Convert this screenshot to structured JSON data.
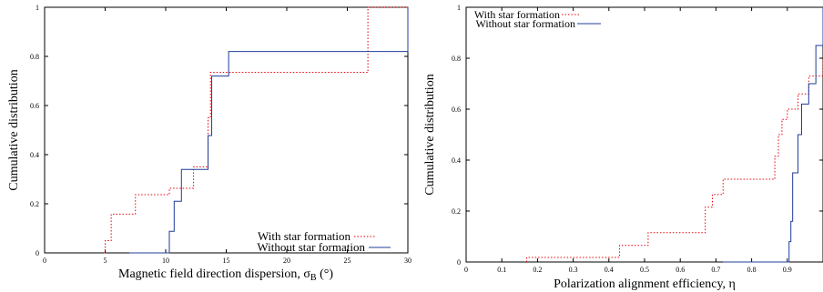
{
  "chart_data": [
    {
      "type": "line",
      "subtype": "step-cdf",
      "xlabel": "Magnetic field direction dispersion, σ",
      "xlabel_sub": "B",
      "xlabel_unit": " (°)",
      "ylabel": "Cumulative distribution",
      "xlim": [
        0,
        30
      ],
      "ylim": [
        0,
        1
      ],
      "xticks": [
        0,
        5,
        10,
        15,
        20,
        25,
        30
      ],
      "yticks": [
        0,
        0.2,
        0.4,
        0.6,
        0.8,
        1
      ],
      "xtick_labels": [
        "0",
        "5",
        "10",
        "15",
        "20",
        "25",
        "30"
      ],
      "ytick_labels": [
        "0",
        "0.2",
        "0.4",
        "0.6",
        "0.8",
        "1"
      ],
      "grid": false,
      "legend_position": "bottom-right",
      "series": [
        {
          "name": "With star formation",
          "color": "#e8000b",
          "dash": "dotted",
          "x": [
            4.9,
            5.0,
            5.5,
            7.5,
            10.3,
            12.3,
            13.5,
            13.7,
            26.7,
            30
          ],
          "y": [
            0,
            0.05,
            0.158,
            0.237,
            0.263,
            0.35,
            0.55,
            0.735,
            1.0,
            1.0
          ]
        },
        {
          "name": "Without star formation",
          "color": "#1f3c99",
          "dash": "solid",
          "x": [
            7.0,
            10.3,
            10.7,
            11.3,
            13.5,
            13.8,
            15.2,
            30
          ],
          "y": [
            0,
            0.088,
            0.21,
            0.34,
            0.478,
            0.72,
            0.82,
            1.0
          ]
        }
      ]
    },
    {
      "type": "line",
      "subtype": "step-cdf",
      "xlabel": "Polarization alignment efficiency, η",
      "ylabel": "Cumulative distribution",
      "xlim": [
        0,
        1.0
      ],
      "ylim": [
        0,
        1
      ],
      "xticks": [
        0,
        0.1,
        0.2,
        0.3,
        0.4,
        0.5,
        0.6,
        0.7,
        0.8,
        0.9
      ],
      "yticks": [
        0,
        0.2,
        0.4,
        0.6,
        0.8,
        1
      ],
      "xtick_labels": [
        "0",
        "0.1",
        "0.2",
        "0.3",
        "0.4",
        "0.5",
        "0.6",
        "0.7",
        "0.8",
        "0.9"
      ],
      "ytick_labels": [
        "0",
        "0.2",
        "0.4",
        "0.6",
        "0.8",
        "1"
      ],
      "grid": false,
      "legend_position": "top-left",
      "series": [
        {
          "name": "With star formation",
          "color": "#e8000b",
          "dash": "dotted",
          "x": [
            0.17,
            0.43,
            0.51,
            0.67,
            0.69,
            0.72,
            0.865,
            0.875,
            0.885,
            0.9,
            0.93,
            0.96,
            1.0
          ],
          "y": [
            0.018,
            0.065,
            0.115,
            0.215,
            0.265,
            0.325,
            0.415,
            0.5,
            0.56,
            0.6,
            0.66,
            0.73,
            0.8
          ]
        },
        {
          "name": "Without star formation",
          "color": "#1f3c99",
          "dash": "solid",
          "x": [
            0.72,
            0.905,
            0.91,
            0.915,
            0.93,
            0.94,
            0.96,
            0.98,
            1.0
          ],
          "y": [
            0,
            0.08,
            0.16,
            0.35,
            0.5,
            0.62,
            0.7,
            0.85,
            1.0
          ]
        }
      ]
    }
  ]
}
